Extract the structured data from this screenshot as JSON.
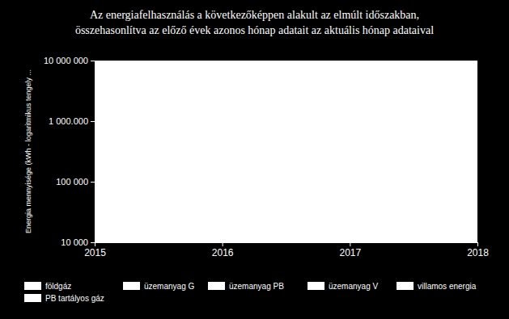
{
  "chart_data": {
    "type": "line",
    "title": "Az energiafelhasználás a következőképpen alakult az elmúlt időszakban,\nösszehasonlítva az előző évek azonos hónap adatait az aktuális hónap adataival",
    "y_label": "Energia mennyisége (kWh - logaritmikus tengely ...",
    "x": [
      2015,
      2016,
      2017,
      2018
    ],
    "xlim": [
      2015,
      2018
    ],
    "xticks": [
      2015,
      2016,
      2017,
      2018
    ],
    "ylim": [
      10000,
      10000000
    ],
    "yticks": [
      {
        "value": 10000,
        "label": "10 000"
      },
      {
        "value": 100000,
        "label": "100 000"
      },
      {
        "value": 1000000,
        "label": "1 000.000"
      },
      {
        "value": 10000000,
        "label": "10 000 000"
      }
    ],
    "log": "y",
    "grid": false,
    "legend": "bottom",
    "series": [
      {
        "name": "földgáz",
        "color": "#ffffff",
        "values": [
          null,
          null,
          null,
          null
        ]
      },
      {
        "name": "üzemanyag G",
        "color": "#ffffff",
        "values": [
          null,
          null,
          null,
          null
        ]
      },
      {
        "name": "üzemanyag PB",
        "color": "#ffffff",
        "values": [
          null,
          null,
          null,
          null
        ]
      },
      {
        "name": "üzemanyag V",
        "color": "#ffffff",
        "values": [
          null,
          null,
          null,
          null
        ]
      },
      {
        "name": "villamos energia",
        "color": "#ffffff",
        "values": [
          null,
          null,
          null,
          null
        ]
      },
      {
        "name": "PB tartályos gáz",
        "color": "#ffffff",
        "values": [
          null,
          null,
          null,
          null
        ]
      }
    ]
  }
}
